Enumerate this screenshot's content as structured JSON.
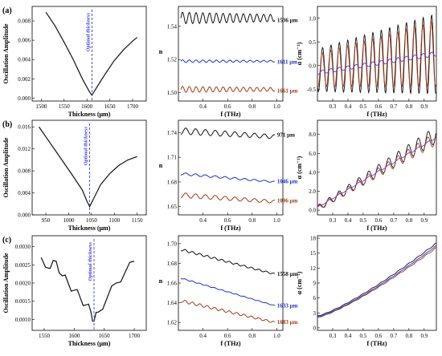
{
  "figure": {
    "rows": [
      {
        "label": "(a)",
        "amplitude": {
          "ylabel": "Oscillation Amplitude",
          "xlabel": "Thickness (μm)",
          "xticks": [
            "1500",
            "1550",
            "1600",
            "1650",
            "1700"
          ],
          "yticks": [
            "0.000",
            "0.002",
            "0.004",
            "0.006",
            "0.008"
          ],
          "marker_label": "Optimal thickness"
        },
        "index": {
          "ylabel": "n",
          "xlabel": "f (THz)",
          "xticks": [
            "0.4",
            "0.6",
            "0.8",
            "1.0"
          ],
          "yticks": [
            "1.50",
            "1.52",
            "1.54"
          ],
          "curves": [
            {
              "label": "1536 μm",
              "color": "#111111"
            },
            {
              "label": "1611 μm",
              "color": "#1f2fd6"
            },
            {
              "label": "1661 μm",
              "color": "#a33a1a"
            }
          ]
        },
        "absorption": {
          "ylabel": "α (cm⁻¹)",
          "xlabel": "f (THz)",
          "xticks": [
            "0.3",
            "0.4",
            "0.5",
            "0.6",
            "0.7",
            "0.8",
            "0.9"
          ],
          "yticks": [
            "-0.5",
            "0.0",
            "0.5",
            "1.0"
          ]
        }
      },
      {
        "label": "(b)",
        "amplitude": {
          "ylabel": "Oscillation Amplitude",
          "xlabel": "Thickness (μm)",
          "xticks": [
            "950",
            "1000",
            "1050",
            "1100",
            "1150"
          ],
          "yticks": [
            "0.000",
            "0.004",
            "0.008",
            "0.012",
            "0.016"
          ],
          "marker_label": "Optimal thickness"
        },
        "index": {
          "ylabel": "n",
          "xlabel": "f (THz)",
          "xticks": [
            "0.4",
            "0.6",
            "0.8",
            "1.0"
          ],
          "yticks": [
            "1.65",
            "1.68",
            "1.71",
            "1.74"
          ],
          "curves": [
            {
              "label": "971 μm",
              "color": "#111111"
            },
            {
              "label": "1046 μm",
              "color": "#1f2fd6"
            },
            {
              "label": "1096 μm",
              "color": "#a33a1a"
            }
          ]
        },
        "absorption": {
          "ylabel": "α (cm⁻¹)",
          "xlabel": "f (THz)",
          "xticks": [
            "0.3",
            "0.4",
            "0.5",
            "0.6",
            "0.7",
            "0.8",
            "0.9"
          ],
          "yticks": [
            "0.0",
            "2.0",
            "4.0",
            "6.0",
            "8.0"
          ]
        }
      },
      {
        "label": "(c)",
        "amplitude": {
          "ylabel": "Oscillation Amplitude",
          "xlabel": "Thickness (μm)",
          "xticks": [
            "1550",
            "1600",
            "1650",
            "1700"
          ],
          "yticks": [
            "0.0010",
            "0.0015",
            "0.0020",
            "0.0025",
            "0.0030"
          ],
          "marker_label": "Optimal thickness"
        },
        "index": {
          "ylabel": "n",
          "xlabel": "f (THz)",
          "xticks": [
            "0.4",
            "0.6",
            "0.8",
            "1.0"
          ],
          "yticks": [
            "1.62",
            "1.64",
            "1.66",
            "1.68",
            "1.70"
          ],
          "curves": [
            {
              "label": "1558 μm",
              "color": "#111111"
            },
            {
              "label": "1633 μm",
              "color": "#1f2fd6"
            },
            {
              "label": "1683 μm",
              "color": "#a33a1a"
            }
          ]
        },
        "absorption": {
          "ylabel": "α (cm⁻¹)",
          "xlabel": "f (THz)",
          "xticks": [
            "0.3",
            "0.4",
            "0.5",
            "0.6",
            "0.7",
            "0.8",
            "0.9"
          ],
          "yticks": [
            "0",
            "3",
            "6",
            "9",
            "12",
            "15",
            "18"
          ]
        }
      }
    ]
  },
  "chart_data": [
    {
      "type": "line",
      "panel": "(a) amplitude",
      "xlabel": "Thickness (μm)",
      "ylabel": "Oscillation Amplitude",
      "xlim": [
        1480,
        1730
      ],
      "ylim": [
        -0.0003,
        0.0095
      ],
      "x": [
        1510,
        1530,
        1550,
        1570,
        1590,
        1605,
        1611,
        1620,
        1640,
        1660,
        1680,
        1700,
        1710
      ],
      "series": [
        {
          "values": [
            0.0089,
            0.0075,
            0.0058,
            0.004,
            0.002,
            0.0007,
            0.0003,
            0.001,
            0.0025,
            0.0039,
            0.005,
            0.0059,
            0.0063
          ]
        }
      ],
      "marker_x": 1611
    },
    {
      "type": "line",
      "panel": "(a) index",
      "xlabel": "f (THz)",
      "ylabel": "n",
      "xlim": [
        0.2,
        1.05
      ],
      "ylim": [
        1.495,
        1.552
      ],
      "series": [
        {
          "name": "1536 μm",
          "mean": 1.545,
          "amp": 0.0035,
          "period": 0.055
        },
        {
          "name": "1611 μm",
          "mean": 1.519,
          "amp": 0.0008,
          "period": 0.055
        },
        {
          "name": "1661 μm",
          "mean": 1.502,
          "amp": 0.0018,
          "period": 0.055
        }
      ]
    },
    {
      "type": "line",
      "panel": "(a) absorption",
      "xlabel": "f (THz)",
      "ylabel": "α (cm⁻¹)",
      "xlim": [
        0.2,
        0.98
      ],
      "ylim": [
        -0.75,
        1.25
      ],
      "series": [
        {
          "color": "#111111",
          "base": [
            -0.1,
            0.25
          ],
          "amp": [
            0.45,
            0.85
          ],
          "period": 0.055
        },
        {
          "color": "#a33a1a",
          "base": [
            -0.1,
            0.25
          ],
          "amp": [
            0.35,
            0.7
          ],
          "period": 0.055,
          "phase": 0.3
        },
        {
          "color": "#6a3fc8",
          "base": [
            -0.15,
            0.25
          ],
          "amp": [
            0.04,
            0.05
          ],
          "period": 0.055
        }
      ]
    },
    {
      "type": "line",
      "panel": "(b) amplitude",
      "xlabel": "Thickness (μm)",
      "ylabel": "Oscillation Amplitude",
      "xlim": [
        920,
        1170
      ],
      "ylim": [
        0,
        0.0172
      ],
      "x": [
        935,
        960,
        985,
        1010,
        1030,
        1040,
        1046,
        1055,
        1070,
        1090,
        1110,
        1130,
        1150
      ],
      "series": [
        {
          "values": [
            0.016,
            0.013,
            0.01,
            0.007,
            0.0045,
            0.0025,
            0.0015,
            0.003,
            0.0055,
            0.0075,
            0.009,
            0.01,
            0.0106
          ]
        }
      ],
      "marker_x": 1046
    },
    {
      "type": "line",
      "panel": "(b) index",
      "xlabel": "f (THz)",
      "ylabel": "n",
      "xlim": [
        0.2,
        1.05
      ],
      "ylim": [
        1.64,
        1.755
      ],
      "series": [
        {
          "name": "971 μm",
          "start": 1.742,
          "end": 1.735,
          "amp": 0.004,
          "period": 0.08
        },
        {
          "name": "1046 μm",
          "start": 1.69,
          "end": 1.68,
          "amp": 0.0015,
          "period": 0.08
        },
        {
          "name": "1096 μm",
          "start": 1.664,
          "end": 1.656,
          "amp": 0.003,
          "period": 0.08
        }
      ]
    },
    {
      "type": "line",
      "panel": "(b) absorption",
      "xlabel": "f (THz)",
      "ylabel": "α (cm⁻¹)",
      "xlim": [
        0.2,
        0.98
      ],
      "ylim": [
        -0.5,
        9.5
      ],
      "series": [
        {
          "color": "#111111",
          "base": [
            0.2,
            8.0
          ],
          "amp": [
            0.3,
            0.9
          ],
          "period": 0.065
        },
        {
          "color": "#a33a1a",
          "base": [
            0.2,
            7.6
          ],
          "amp": [
            0.25,
            0.7
          ],
          "period": 0.065,
          "phase": 0.3
        },
        {
          "color": "#6a3fc8",
          "base": [
            0.3,
            7.7
          ],
          "amp": [
            0.05,
            0.08
          ],
          "period": 0.065
        }
      ]
    },
    {
      "type": "line",
      "panel": "(c) amplitude",
      "xlabel": "Thickness (μm)",
      "ylabel": "Oscillation Amplitude",
      "xlim": [
        1530,
        1720
      ],
      "ylim": [
        0.0007,
        0.0033
      ],
      "x": [
        1545,
        1560,
        1570,
        1580,
        1590,
        1600,
        1610,
        1620,
        1628,
        1633,
        1640,
        1655,
        1670,
        1685,
        1700
      ],
      "series": [
        {
          "values": [
            0.0027,
            0.0024,
            0.0026,
            0.0022,
            0.002,
            0.0018,
            0.0016,
            0.0014,
            0.0012,
            0.00095,
            0.0012,
            0.0016,
            0.002,
            0.0023,
            0.0026
          ]
        }
      ],
      "marker_x": 1633
    },
    {
      "type": "line",
      "panel": "(c) index",
      "xlabel": "f (THz)",
      "ylabel": "n",
      "xlim": [
        0.2,
        1.05
      ],
      "ylim": [
        1.612,
        1.708
      ],
      "series": [
        {
          "name": "1558 μm",
          "start": 1.694,
          "end": 1.669,
          "amp": 0.0012,
          "period": 0.06
        },
        {
          "name": "1633 μm",
          "start": 1.665,
          "end": 1.637,
          "amp": 0.0005,
          "period": 0.06
        },
        {
          "name": "1683 μm",
          "start": 1.642,
          "end": 1.62,
          "amp": 0.0015,
          "period": 0.06
        }
      ]
    },
    {
      "type": "line",
      "panel": "(c) absorption",
      "xlabel": "f (THz)",
      "ylabel": "α (cm⁻¹)",
      "xlim": [
        0.2,
        0.98
      ],
      "ylim": [
        -0.5,
        18.5
      ],
      "series": [
        {
          "color": "#111111",
          "base": [
            2.4,
            17.0
          ],
          "amp": [
            0.05,
            0.1
          ],
          "period": 0.06
        },
        {
          "color": "#a33a1a",
          "base": [
            2.1,
            16.1
          ],
          "amp": [
            0.05,
            0.1
          ],
          "period": 0.06
        },
        {
          "color": "#1f2fd6",
          "base": [
            2.2,
            16.5
          ],
          "amp": [
            0.03,
            0.06
          ],
          "period": 0.06
        }
      ]
    }
  ]
}
